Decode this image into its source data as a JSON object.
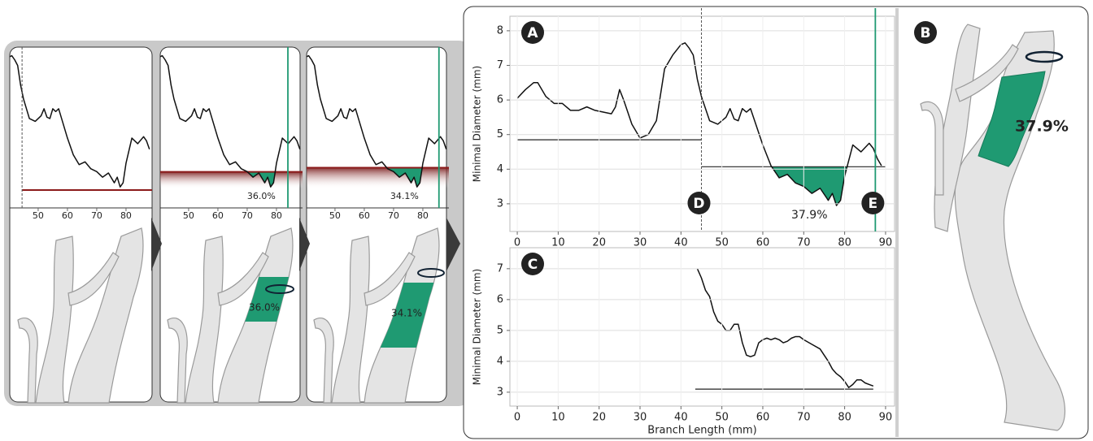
{
  "chart_data": [
    {
      "type": "line",
      "xlim": [
        40.3,
        88.9
      ],
      "xticks": [
        50,
        60,
        70,
        80
      ],
      "ylim": [
        2.2,
        7.9
      ],
      "x": [
        40,
        41,
        42,
        43,
        44,
        45,
        47,
        49,
        51,
        52,
        53,
        54,
        55,
        56,
        57,
        58,
        60,
        62,
        64,
        66,
        68,
        70,
        72,
        74,
        76,
        77,
        78,
        79,
        80,
        82,
        84,
        86,
        87,
        88
      ],
      "values": [
        7.6,
        7.65,
        7.5,
        7.3,
        6.6,
        6.1,
        5.4,
        5.3,
        5.5,
        5.75,
        5.45,
        5.4,
        5.75,
        5.65,
        5.75,
        5.4,
        4.7,
        4.1,
        3.75,
        3.85,
        3.6,
        3.5,
        3.3,
        3.45,
        3.1,
        3.3,
        2.95,
        3.1,
        3.8,
        4.7,
        4.5,
        4.75,
        4.6,
        4.3
      ],
      "color": "#111111",
      "thresholds": [
        {
          "x": [
            44.5,
            88.9
          ],
          "y": 2.84,
          "color": "#8b1a1a"
        }
      ],
      "markers": [
        {
          "x": 44.5,
          "style": "dashed"
        }
      ]
    },
    {
      "type": "line",
      "xlim": [
        40.3,
        88.9
      ],
      "xticks": [
        50,
        60,
        70,
        80
      ],
      "ylim": [
        2.2,
        7.9
      ],
      "x": [
        40,
        41,
        42,
        43,
        44,
        45,
        47,
        49,
        51,
        52,
        53,
        54,
        55,
        56,
        57,
        58,
        60,
        62,
        64,
        66,
        68,
        70,
        72,
        74,
        76,
        77,
        78,
        79,
        80,
        82,
        84,
        86,
        87,
        88
      ],
      "values": [
        7.6,
        7.65,
        7.5,
        7.3,
        6.6,
        6.1,
        5.4,
        5.3,
        5.5,
        5.75,
        5.45,
        5.4,
        5.75,
        5.65,
        5.75,
        5.4,
        4.7,
        4.1,
        3.75,
        3.85,
        3.6,
        3.5,
        3.3,
        3.45,
        3.1,
        3.3,
        2.95,
        3.1,
        3.8,
        4.7,
        4.5,
        4.75,
        4.6,
        4.3
      ],
      "color": "#111111",
      "thresholds": [
        {
          "x": [
            40.3,
            88.9
          ],
          "y": 3.49,
          "color": "#8b1a1a",
          "band": true,
          "fill": "#1f9a72"
        }
      ],
      "markers": [
        {
          "x": 83.9,
          "color": "#1f9a72"
        }
      ],
      "stenosis_label": "36.0%"
    },
    {
      "type": "line",
      "xlim": [
        40.3,
        88.9
      ],
      "xticks": [
        50,
        60,
        70,
        80
      ],
      "ylim": [
        2.2,
        7.9
      ],
      "x": [
        40,
        41,
        42,
        43,
        44,
        45,
        47,
        49,
        51,
        52,
        53,
        54,
        55,
        56,
        57,
        58,
        60,
        62,
        64,
        66,
        68,
        70,
        72,
        74,
        76,
        77,
        78,
        79,
        80,
        82,
        84,
        86,
        87,
        88
      ],
      "values": [
        7.6,
        7.65,
        7.5,
        7.3,
        6.6,
        6.1,
        5.4,
        5.3,
        5.5,
        5.75,
        5.45,
        5.4,
        5.75,
        5.65,
        5.75,
        5.4,
        4.7,
        4.1,
        3.75,
        3.85,
        3.6,
        3.5,
        3.3,
        3.45,
        3.1,
        3.3,
        2.95,
        3.1,
        3.8,
        4.7,
        4.5,
        4.75,
        4.6,
        4.3
      ],
      "color": "#111111",
      "thresholds": [
        {
          "x": [
            40.3,
            88.9
          ],
          "y": 3.64,
          "color": "#8b1a1a",
          "band": true,
          "fill": "#1f9a72"
        }
      ],
      "markers": [
        {
          "x": 85.5,
          "color": "#1f9a72"
        }
      ],
      "stenosis_label": "34.1%"
    },
    {
      "type": "line",
      "label": "A",
      "ylabel": "Minimal Diameter (mm)",
      "xlim": [
        -1.8,
        92.2
      ],
      "xticks": [
        0,
        10,
        20,
        30,
        40,
        50,
        60,
        70,
        80,
        90
      ],
      "ylim": [
        2.2,
        8.42
      ],
      "yticks": [
        3,
        4,
        5,
        6,
        7,
        8
      ],
      "grid": true,
      "x": [
        0,
        2,
        4,
        5,
        7,
        9,
        11,
        13,
        15,
        17,
        19,
        21,
        23,
        24,
        25,
        26,
        28,
        30,
        32,
        34,
        36,
        38,
        40,
        41,
        42,
        43,
        44,
        45,
        47,
        49,
        51,
        52,
        53,
        54,
        55,
        56,
        57,
        58,
        60,
        62,
        64,
        66,
        68,
        70,
        72,
        74,
        76,
        77,
        78,
        79,
        80,
        82,
        84,
        86,
        87,
        88,
        89
      ],
      "values": [
        6.05,
        6.3,
        6.5,
        6.5,
        6.1,
        5.9,
        5.9,
        5.7,
        5.7,
        5.8,
        5.7,
        5.65,
        5.6,
        5.8,
        6.3,
        6.0,
        5.3,
        4.9,
        5.0,
        5.4,
        6.9,
        7.3,
        7.6,
        7.65,
        7.5,
        7.3,
        6.6,
        6.1,
        5.4,
        5.3,
        5.5,
        5.75,
        5.45,
        5.4,
        5.75,
        5.65,
        5.75,
        5.4,
        4.7,
        4.1,
        3.75,
        3.85,
        3.6,
        3.5,
        3.3,
        3.45,
        3.1,
        3.3,
        2.95,
        3.1,
        3.8,
        4.7,
        4.5,
        4.75,
        4.6,
        4.3,
        4.1
      ],
      "color": "#111111",
      "thresholds": [
        {
          "x": [
            0,
            45
          ],
          "y": 4.85,
          "color": "#222222"
        },
        {
          "x": [
            45,
            90
          ],
          "y": 4.07,
          "color": "#222222",
          "fill": "#1f9a72"
        }
      ],
      "markers": [
        {
          "x": 45,
          "label": "D",
          "style": "dashed"
        },
        {
          "x": 87.5,
          "label": "E",
          "color": "#1f9a72"
        }
      ],
      "stenosis_label": "37.9%"
    },
    {
      "type": "line",
      "label": "C",
      "ylabel": "Minimal Diameter (mm)",
      "xlabel": "Branch Length (mm)",
      "xlim": [
        -1.8,
        92.2
      ],
      "xticks": [
        0,
        10,
        20,
        30,
        40,
        50,
        60,
        70,
        80,
        90
      ],
      "ylim": [
        2.55,
        7.68
      ],
      "yticks": [
        3,
        4,
        5,
        6,
        7
      ],
      "grid": true,
      "x": [
        44,
        45,
        46,
        47,
        48,
        49,
        50,
        51,
        52,
        53,
        54,
        55,
        56,
        57,
        58,
        59,
        60,
        61,
        62,
        63,
        64,
        65,
        66,
        67,
        68,
        69,
        70,
        72,
        74,
        75,
        76,
        77,
        78,
        79,
        80,
        81,
        82,
        83,
        84,
        85,
        86,
        87
      ],
      "values": [
        7.0,
        6.7,
        6.3,
        6.1,
        5.6,
        5.3,
        5.2,
        5.0,
        5.0,
        5.2,
        5.2,
        4.6,
        4.2,
        4.15,
        4.2,
        4.6,
        4.7,
        4.75,
        4.7,
        4.75,
        4.7,
        4.6,
        4.65,
        4.75,
        4.8,
        4.8,
        4.7,
        4.55,
        4.4,
        4.2,
        4.0,
        3.75,
        3.6,
        3.5,
        3.35,
        3.15,
        3.25,
        3.4,
        3.4,
        3.3,
        3.25,
        3.2
      ],
      "color": "#111111",
      "thresholds": [
        {
          "x": [
            43.5,
            87
          ],
          "y": 3.1,
          "color": "#222222"
        }
      ]
    }
  ],
  "model_view": {
    "label": "B",
    "stenosis_label": "37.9%"
  }
}
